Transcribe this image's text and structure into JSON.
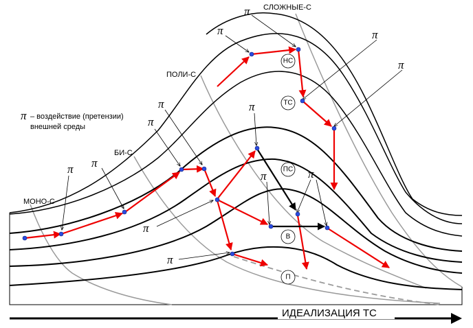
{
  "system_labels": {
    "mono": "МОНО-С",
    "bi": "БИ-С",
    "poli": "ПОЛИ-С",
    "complex": "СЛОЖНЫЕ-С"
  },
  "legend": {
    "symbol": "π",
    "line1": "– воздействие (претензии)",
    "line2": "внешней среды"
  },
  "pi_symbol": "π",
  "axis_label": "ИДЕАЛИЗАЦИЯ ТС",
  "circle_labels": {
    "nc": "НС",
    "tc": "ТС",
    "pc": "ПС",
    "b": "В",
    "p": "П"
  },
  "colors": {
    "curve": "#000000",
    "boundary": "#999999",
    "red_arrow": "#ee0000",
    "black_arrow": "#000000",
    "node": "#2a4be0"
  }
}
